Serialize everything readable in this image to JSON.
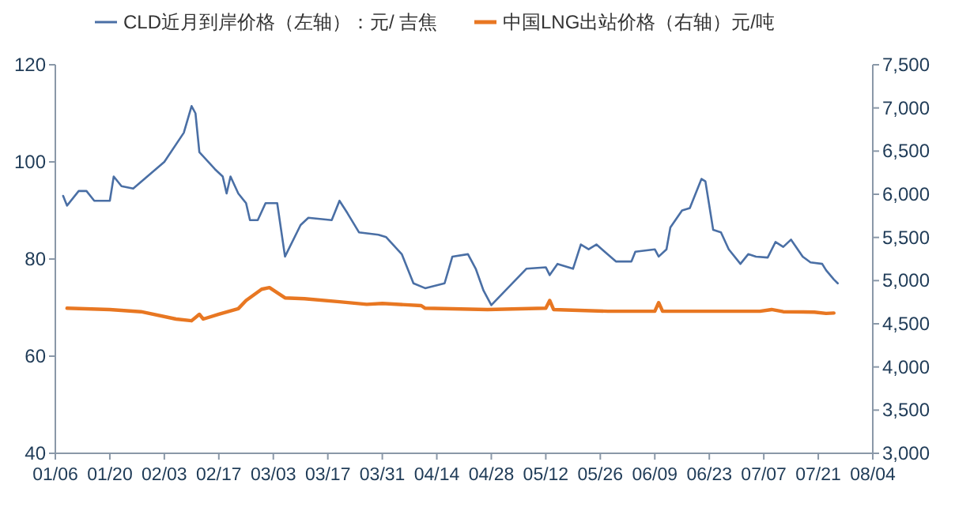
{
  "chart_data": {
    "type": "line",
    "legend": "top",
    "xlim": [
      "--01-06",
      "--08-04"
    ],
    "xticks": [
      {
        "value": "--01-06",
        "label": "01/06"
      },
      {
        "value": "--01-20",
        "label": "01/20"
      },
      {
        "value": "--02-03",
        "label": "02/03"
      },
      {
        "value": "--02-17",
        "label": "02/17"
      },
      {
        "value": "--03-03",
        "label": "03/03"
      },
      {
        "value": "--03-17",
        "label": "03/17"
      },
      {
        "value": "--03-31",
        "label": "03/31"
      },
      {
        "value": "--04-14",
        "label": "04/14"
      },
      {
        "value": "--04-28",
        "label": "04/28"
      },
      {
        "value": "--05-12",
        "label": "05/12"
      },
      {
        "value": "--05-26",
        "label": "05/26"
      },
      {
        "value": "--06-09",
        "label": "06/09"
      },
      {
        "value": "--06-23",
        "label": "06/23"
      },
      {
        "value": "--07-07",
        "label": "07/07"
      },
      {
        "value": "--07-21",
        "label": "07/21"
      },
      {
        "value": "--08-04",
        "label": "08/04"
      }
    ],
    "ylim": [
      40,
      120
    ],
    "yticks": [
      40,
      60,
      80,
      100,
      120
    ],
    "y2lim": [
      3000,
      7500
    ],
    "y2ticks": [
      {
        "value": 3000,
        "label": "3,000"
      },
      {
        "value": 3500,
        "label": "3,500"
      },
      {
        "value": 4000,
        "label": "4,000"
      },
      {
        "value": 4500,
        "label": "4,500"
      },
      {
        "value": 5000,
        "label": "5,000"
      },
      {
        "value": 5500,
        "label": "5,500"
      },
      {
        "value": 6000,
        "label": "6,000"
      },
      {
        "value": 6500,
        "label": "6,500"
      },
      {
        "value": 7000,
        "label": "7,000"
      },
      {
        "value": 7500,
        "label": "7,500"
      }
    ],
    "series": [
      {
        "name": "CLD近月到岸价格（左轴）：元/ 吉焦",
        "color": "#4a6fa5",
        "x": [
          "--01-08",
          "--01-09",
          "--01-12",
          "--01-14",
          "--01-16",
          "--01-20",
          "--01-21",
          "--01-23",
          "--01-26",
          "--02-03",
          "--02-08",
          "--02-10",
          "--02-11",
          "--02-12",
          "--02-16",
          "--02-18",
          "--02-19",
          "--02-20",
          "--02-22",
          "--02-24",
          "--02-25",
          "--02-27",
          "--03-01",
          "--03-04",
          "--03-06",
          "--03-10",
          "--03-12",
          "--03-18",
          "--03-20",
          "--03-22",
          "--03-25",
          "--03-30",
          "--04-01",
          "--04-05",
          "--04-08",
          "--04-11",
          "--04-16",
          "--04-18",
          "--04-22",
          "--04-24",
          "--04-26",
          "--04-28",
          "--05-07",
          "--05-12",
          "--05-13",
          "--05-15",
          "--05-19",
          "--05-21",
          "--05-23",
          "--05-25",
          "--05-30",
          "--06-03",
          "--06-04",
          "--06-09",
          "--06-10",
          "--06-12",
          "--06-13",
          "--06-16",
          "--06-18",
          "--06-21",
          "--06-22",
          "--06-24",
          "--06-26",
          "--06-28",
          "--07-01",
          "--07-03",
          "--07-05",
          "--07-08",
          "--07-10",
          "--07-12",
          "--07-14",
          "--07-17",
          "--07-19",
          "--07-22",
          "--07-23",
          "--07-25",
          "--07-26"
        ],
        "values": [
          93,
          91,
          94,
          94,
          92,
          92,
          97,
          95,
          94.5,
          100,
          106,
          111.5,
          110,
          102,
          98.5,
          97,
          93.5,
          97,
          93.5,
          91.5,
          88,
          88,
          91.5,
          91.5,
          80.5,
          87,
          88.5,
          88,
          92,
          89.5,
          85.5,
          85,
          84.5,
          81,
          75,
          74,
          75,
          80.5,
          81,
          78,
          73.5,
          70.5,
          78,
          78.3,
          76.7,
          79,
          78,
          83,
          82,
          83,
          79.5,
          79.5,
          81.5,
          82,
          80.5,
          82,
          86.5,
          90,
          90.5,
          96.5,
          96,
          86,
          85.5,
          82,
          79,
          81,
          80.5,
          80.3,
          83.5,
          82.5,
          84,
          80.5,
          79.3,
          79,
          77.7,
          75.8,
          75
        ]
      },
      {
        "name": "中国LNG出站价格（右轴）元/吨",
        "color": "#e87722",
        "axis": "y2",
        "x": [
          "--01-09",
          "--01-20",
          "--01-28",
          "--02-06",
          "--02-10",
          "--02-12",
          "--02-13",
          "--02-17",
          "--02-22",
          "--02-24",
          "--02-28",
          "--03-02",
          "--03-06",
          "--03-11",
          "--03-20",
          "--03-27",
          "--03-31",
          "--04-10",
          "--04-11",
          "--04-27",
          "--05-12",
          "--05-13",
          "--05-14",
          "--05-28",
          "--06-09",
          "--06-10",
          "--06-11",
          "--07-06",
          "--07-09",
          "--07-12",
          "--07-20",
          "--07-23",
          "--07-25"
        ],
        "values": [
          4680,
          4665,
          4640,
          4555,
          4535,
          4610,
          4555,
          4610,
          4675,
          4770,
          4900,
          4920,
          4800,
          4790,
          4755,
          4725,
          4735,
          4710,
          4680,
          4665,
          4680,
          4770,
          4665,
          4645,
          4645,
          4745,
          4645,
          4645,
          4665,
          4640,
          4635,
          4620,
          4625
        ]
      }
    ]
  }
}
